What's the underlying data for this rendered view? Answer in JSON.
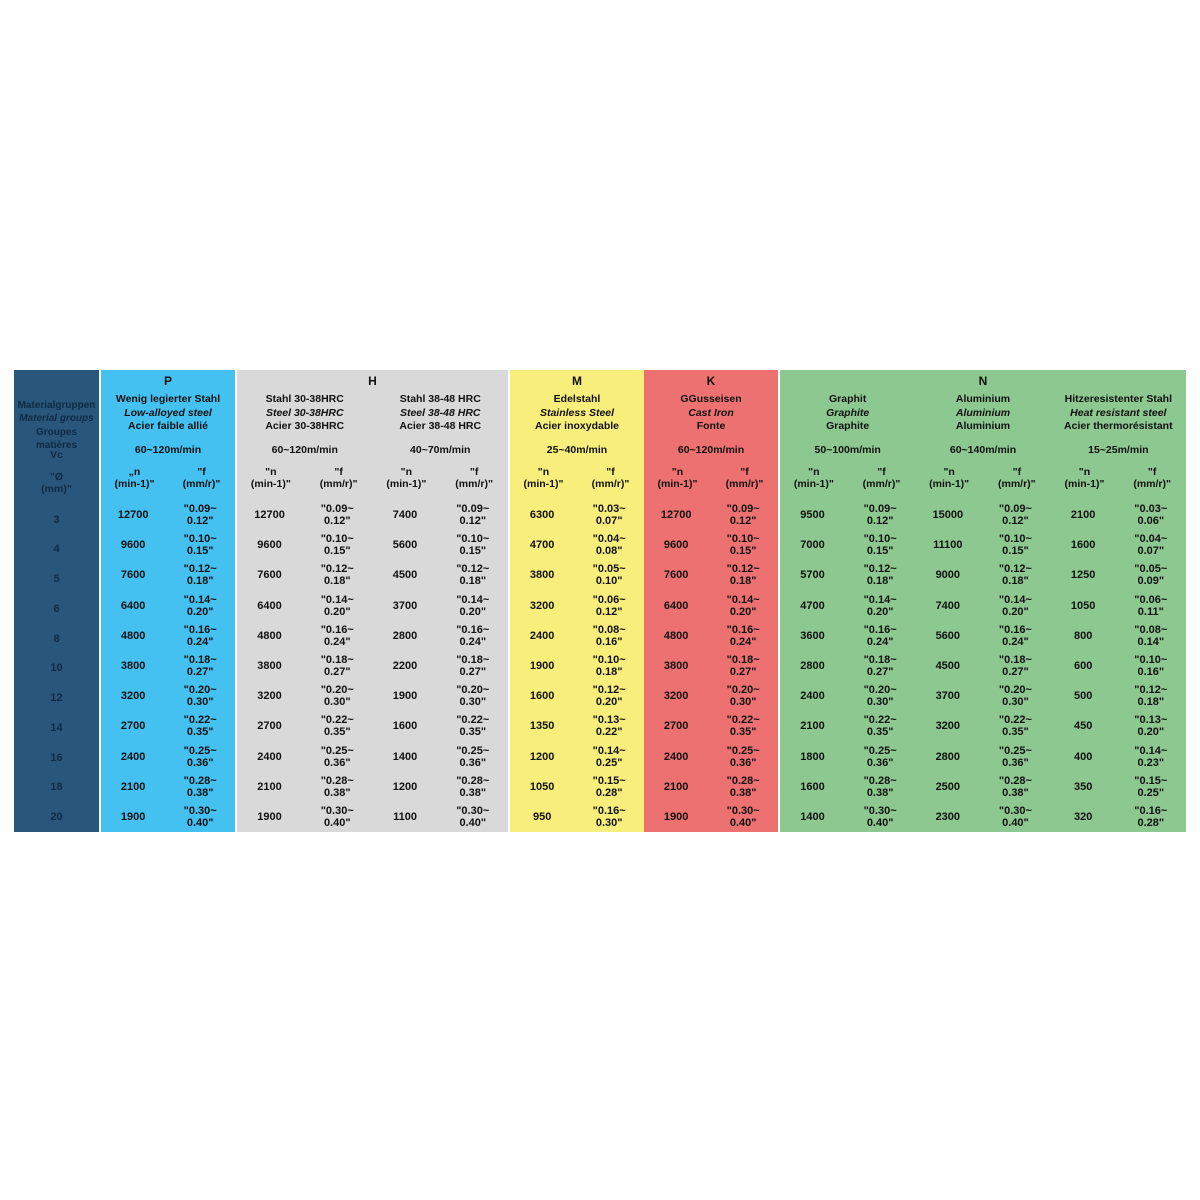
{
  "colors": {
    "page_bg": "#ffffff",
    "text": "#111111"
  },
  "label_column": {
    "color": "#2a567c",
    "text_color": "#0e2b45",
    "title_lines": [
      "Materialgruppen",
      "Material groups",
      "Groupes matières"
    ],
    "vc_label": "Vc",
    "diameter_header": [
      "\"Ø",
      "(mm)\""
    ],
    "diameters": [
      "3",
      "4",
      "5",
      "6",
      "8",
      "10",
      "12",
      "14",
      "16",
      "18",
      "20"
    ]
  },
  "sections": [
    {
      "letter": "P",
      "color": "#44c1f1",
      "groups": [
        {
          "name_lines": [
            "Wenig legierter Stahl",
            "Low-alloyed steel",
            "Acier faible allié"
          ],
          "vc": "60~120m/min",
          "n_header": [
            "„n",
            "(min-1)\""
          ],
          "f_header": [
            "\"f",
            "(mm/r)\""
          ],
          "n": [
            "12700",
            "9600",
            "7600",
            "6400",
            "4800",
            "3800",
            "3200",
            "2700",
            "2400",
            "2100",
            "1900"
          ],
          "f": [
            [
              "\"0.09~",
              "0.12\""
            ],
            [
              "\"0.10~",
              "0.15\""
            ],
            [
              "\"0.12~",
              "0.18\""
            ],
            [
              "\"0.14~",
              "0.20\""
            ],
            [
              "\"0.16~",
              "0.24\""
            ],
            [
              "\"0.18~",
              "0.27\""
            ],
            [
              "\"0.20~",
              "0.30\""
            ],
            [
              "\"0.22~",
              "0.35\""
            ],
            [
              "\"0.25~",
              "0.36\""
            ],
            [
              "\"0.28~",
              "0.38\""
            ],
            [
              "\"0.30~",
              "0.40\""
            ]
          ]
        }
      ]
    },
    {
      "letter": "H",
      "color": "#d9d9d9",
      "groups": [
        {
          "name_lines": [
            "Stahl 30-38HRC",
            "Steel 30-38HRC",
            "Acier 30-38HRC"
          ],
          "vc": "60~120m/min",
          "n_header": [
            "\"n",
            "(min-1)\""
          ],
          "f_header": [
            "\"f",
            "(mm/r)\""
          ],
          "n": [
            "12700",
            "9600",
            "7600",
            "6400",
            "4800",
            "3800",
            "3200",
            "2700",
            "2400",
            "2100",
            "1900"
          ],
          "f": [
            [
              "\"0.09~",
              "0.12\""
            ],
            [
              "\"0.10~",
              "0.15\""
            ],
            [
              "\"0.12~",
              "0.18\""
            ],
            [
              "\"0.14~",
              "0.20\""
            ],
            [
              "\"0.16~",
              "0.24\""
            ],
            [
              "\"0.18~",
              "0.27\""
            ],
            [
              "\"0.20~",
              "0.30\""
            ],
            [
              "\"0.22~",
              "0.35\""
            ],
            [
              "\"0.25~",
              "0.36\""
            ],
            [
              "\"0.28~",
              "0.38\""
            ],
            [
              "\"0.30~",
              "0.40\""
            ]
          ]
        },
        {
          "name_lines": [
            "Stahl 38-48 HRC",
            "Steel 38-48 HRC",
            "Acier 38-48 HRC"
          ],
          "vc": "40~70m/min",
          "n_header": [
            "\"n",
            "(min-1)\""
          ],
          "f_header": [
            "\"f",
            "(mm/r)\""
          ],
          "n": [
            "7400",
            "5600",
            "4500",
            "3700",
            "2800",
            "2200",
            "1900",
            "1600",
            "1400",
            "1200",
            "1100"
          ],
          "f": [
            [
              "\"0.09~",
              "0.12\""
            ],
            [
              "\"0.10~",
              "0.15\""
            ],
            [
              "\"0.12~",
              "0.18\""
            ],
            [
              "\"0.14~",
              "0.20\""
            ],
            [
              "\"0.16~",
              "0.24\""
            ],
            [
              "\"0.18~",
              "0.27\""
            ],
            [
              "\"0.20~",
              "0.30\""
            ],
            [
              "\"0.22~",
              "0.35\""
            ],
            [
              "\"0.25~",
              "0.36\""
            ],
            [
              "\"0.28~",
              "0.38\""
            ],
            [
              "\"0.30~",
              "0.40\""
            ]
          ]
        }
      ]
    },
    {
      "letter": "M",
      "color": "#f8ee7b",
      "groups": [
        {
          "name_lines": [
            "Edelstahl",
            "Stainless Steel",
            "Acier inoxydable"
          ],
          "vc": "25~40m/min",
          "n_header": [
            "\"n",
            "(min-1)\""
          ],
          "f_header": [
            "\"f",
            "(mm/r)\""
          ],
          "n": [
            "6300",
            "4700",
            "3800",
            "3200",
            "2400",
            "1900",
            "1600",
            "1350",
            "1200",
            "1050",
            "950"
          ],
          "f": [
            [
              "\"0.03~",
              "0.07\""
            ],
            [
              "\"0.04~",
              "0.08\""
            ],
            [
              "\"0.05~",
              "0.10\""
            ],
            [
              "\"0.06~",
              "0.12\""
            ],
            [
              "\"0.08~",
              "0.16\""
            ],
            [
              "\"0.10~",
              "0.18\""
            ],
            [
              "\"0.12~",
              "0.20\""
            ],
            [
              "\"0.13~",
              "0.22\""
            ],
            [
              "\"0.14~",
              "0.25\""
            ],
            [
              "\"0.15~",
              "0.28\""
            ],
            [
              "\"0.16~",
              "0.30\""
            ]
          ]
        }
      ]
    },
    {
      "letter": "K",
      "color": "#ee7171",
      "groups": [
        {
          "name_lines": [
            "GGusseisen",
            "Cast Iron",
            "Fonte"
          ],
          "vc": "60~120m/min",
          "n_header": [
            "\"n",
            "(min-1)\""
          ],
          "f_header": [
            "\"f",
            "(mm/r)\""
          ],
          "n": [
            "12700",
            "9600",
            "7600",
            "6400",
            "4800",
            "3800",
            "3200",
            "2700",
            "2400",
            "2100",
            "1900"
          ],
          "f": [
            [
              "\"0.09~",
              "0.12\""
            ],
            [
              "\"0.10~",
              "0.15\""
            ],
            [
              "\"0.12~",
              "0.18\""
            ],
            [
              "\"0.14~",
              "0.20\""
            ],
            [
              "\"0.16~",
              "0.24\""
            ],
            [
              "\"0.18~",
              "0.27\""
            ],
            [
              "\"0.20~",
              "0.30\""
            ],
            [
              "\"0.22~",
              "0.35\""
            ],
            [
              "\"0.25~",
              "0.36\""
            ],
            [
              "\"0.28~",
              "0.38\""
            ],
            [
              "\"0.30~",
              "0.40\""
            ]
          ]
        }
      ]
    },
    {
      "letter": "N",
      "color": "#8cc88f",
      "groups": [
        {
          "name_lines": [
            "Graphit",
            "Graphite",
            "Graphite"
          ],
          "vc": "50~100m/min",
          "n_header": [
            "\"n",
            "(min-1)\""
          ],
          "f_header": [
            "\"f",
            "(mm/r)\""
          ],
          "n": [
            "9500",
            "7000",
            "5700",
            "4700",
            "3600",
            "2800",
            "2400",
            "2100",
            "1800",
            "1600",
            "1400"
          ],
          "f": [
            [
              "\"0.09~",
              "0.12\""
            ],
            [
              "\"0.10~",
              "0.15\""
            ],
            [
              "\"0.12~",
              "0.18\""
            ],
            [
              "\"0.14~",
              "0.20\""
            ],
            [
              "\"0.16~",
              "0.24\""
            ],
            [
              "\"0.18~",
              "0.27\""
            ],
            [
              "\"0.20~",
              "0.30\""
            ],
            [
              "\"0.22~",
              "0.35\""
            ],
            [
              "\"0.25~",
              "0.36\""
            ],
            [
              "\"0.28~",
              "0.38\""
            ],
            [
              "\"0.30~",
              "0.40\""
            ]
          ]
        },
        {
          "name_lines": [
            "Aluminium",
            "Aluminium",
            "Aluminium"
          ],
          "vc": "60~140m/min",
          "n_header": [
            "\"n",
            "(min-1)\""
          ],
          "f_header": [
            "\"f",
            "(mm/r)\""
          ],
          "n": [
            "15000",
            "11100",
            "9000",
            "7400",
            "5600",
            "4500",
            "3700",
            "3200",
            "2800",
            "2500",
            "2300"
          ],
          "f": [
            [
              "\"0.09~",
              "0.12\""
            ],
            [
              "\"0.10~",
              "0.15\""
            ],
            [
              "\"0.12~",
              "0.18\""
            ],
            [
              "\"0.14~",
              "0.20\""
            ],
            [
              "\"0.16~",
              "0.24\""
            ],
            [
              "\"0.18~",
              "0.27\""
            ],
            [
              "\"0.20~",
              "0.30\""
            ],
            [
              "\"0.22~",
              "0.35\""
            ],
            [
              "\"0.25~",
              "0.36\""
            ],
            [
              "\"0.28~",
              "0.38\""
            ],
            [
              "\"0.30~",
              "0.40\""
            ]
          ]
        },
        {
          "name_lines": [
            "Hitzeresistenter Stahl",
            "Heat resistant steel",
            "Acier thermorésistant"
          ],
          "vc": "15~25m/min",
          "n_header": [
            "\"n",
            "(min-1)\""
          ],
          "f_header": [
            "\"f",
            "(mm/r)\""
          ],
          "n": [
            "2100",
            "1600",
            "1250",
            "1050",
            "800",
            "600",
            "500",
            "450",
            "400",
            "350",
            "320"
          ],
          "f": [
            [
              "\"0.03~",
              "0.06\""
            ],
            [
              "\"0.04~",
              "0.07\""
            ],
            [
              "\"0.05~",
              "0.09\""
            ],
            [
              "\"0.06~",
              "0.11\""
            ],
            [
              "\"0.08~",
              "0.14\""
            ],
            [
              "\"0.10~",
              "0.16\""
            ],
            [
              "\"0.12~",
              "0.18\""
            ],
            [
              "\"0.13~",
              "0.20\""
            ],
            [
              "\"0.14~",
              "0.23\""
            ],
            [
              "\"0.15~",
              "0.25\""
            ],
            [
              "\"0.16~",
              "0.28\""
            ]
          ]
        }
      ]
    }
  ]
}
